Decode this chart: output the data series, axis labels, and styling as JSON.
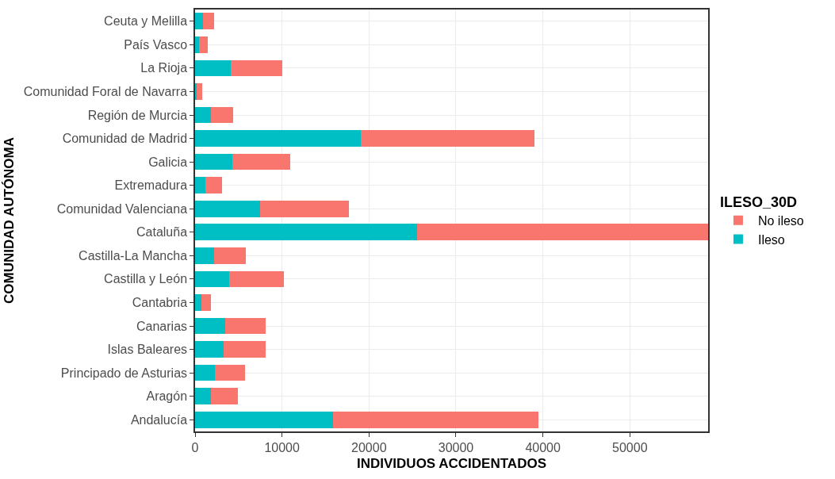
{
  "chart_data": {
    "type": "bar",
    "orientation": "horizontal",
    "stacked": true,
    "xlabel": "INDIVIDUOS ACCIDENTADOS",
    "ylabel": "COMUNIDAD AUTÓNOMA",
    "legend_title": "ILESO_30D",
    "categories": [
      "Ceuta y Melilla",
      "País Vasco",
      "La Rioja",
      "Comunidad Foral de Navarra",
      "Región de Murcia",
      "Comunidad de Madrid",
      "Galicia",
      "Extremadura",
      "Comunidad Valenciana",
      "Cataluña",
      "Castilla-La Mancha",
      "Castilla y León",
      "Cantabria",
      "Canarias",
      "Islas Baleares",
      "Principado de Asturias",
      "Aragón",
      "Andalucía"
    ],
    "series": [
      {
        "name": "Ileso",
        "color": "#00bfc4",
        "values": [
          900,
          500,
          4100,
          200,
          1850,
          19100,
          4300,
          1200,
          7500,
          25500,
          2150,
          3950,
          700,
          3450,
          3300,
          2300,
          1850,
          15900
        ]
      },
      {
        "name": "No ileso",
        "color": "#f8766d",
        "values": [
          1250,
          1000,
          5900,
          650,
          2550,
          19900,
          6600,
          1900,
          10200,
          33500,
          3700,
          6300,
          1150,
          4650,
          4800,
          3400,
          3050,
          23600
        ]
      }
    ],
    "xlim": [
      0,
      59000
    ],
    "xticks": [
      0,
      10000,
      20000,
      30000,
      40000,
      50000
    ],
    "grid": true,
    "legend": "right"
  }
}
